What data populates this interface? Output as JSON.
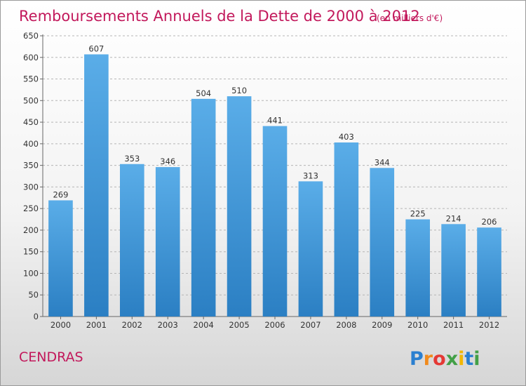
{
  "chart_data": {
    "type": "bar",
    "title": "Remboursements Annuels de la Dette de 2000 à 2012",
    "subtitle": "(en milliers d'€)",
    "categories": [
      "2000",
      "2001",
      "2002",
      "2003",
      "2004",
      "2005",
      "2006",
      "2007",
      "2008",
      "2009",
      "2010",
      "2011",
      "2012"
    ],
    "values": [
      269,
      607,
      353,
      346,
      504,
      510,
      441,
      313,
      403,
      344,
      225,
      214,
      206
    ],
    "ylim": [
      0,
      650
    ],
    "yticks": [
      0,
      50,
      100,
      150,
      200,
      250,
      300,
      350,
      400,
      450,
      500,
      550,
      600,
      650
    ],
    "grid": true,
    "legend": "none",
    "bar_color_top": "#5aade8",
    "bar_color_bottom": "#2b7fc3"
  },
  "commune": "CENDRAS",
  "logo": {
    "letters": [
      "P",
      "r",
      "o",
      "x",
      "i",
      "t",
      "i"
    ],
    "colors": [
      "#2a7fd0",
      "#f08a1c",
      "#e53935",
      "#43a047",
      "#f2b705",
      "#2a7fd0",
      "#43a047"
    ]
  }
}
